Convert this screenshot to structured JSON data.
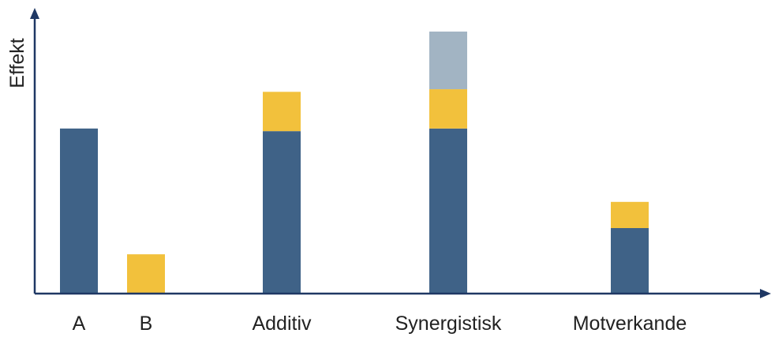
{
  "chart_data": {
    "type": "bar",
    "stacked": true,
    "title": "",
    "xlabel": "",
    "ylabel": "Effekt",
    "ylim": [
      0,
      100
    ],
    "show_value_axis_ticks": false,
    "grid": false,
    "legend": "none",
    "categories": [
      "A",
      "B",
      "Additiv",
      "Synergistisk",
      "Motverkande"
    ],
    "series": [
      {
        "values": [
          63,
          0,
          62,
          63,
          25
        ],
        "color": "#3f6287"
      },
      {
        "values": [
          0,
          15,
          15,
          15,
          10
        ],
        "color": "#f2c13c"
      },
      {
        "values": [
          0,
          0,
          0,
          22,
          0
        ],
        "color": "#a2b4c3"
      }
    ]
  },
  "colors": {
    "axis": "#1f3864",
    "text": "#222222"
  }
}
